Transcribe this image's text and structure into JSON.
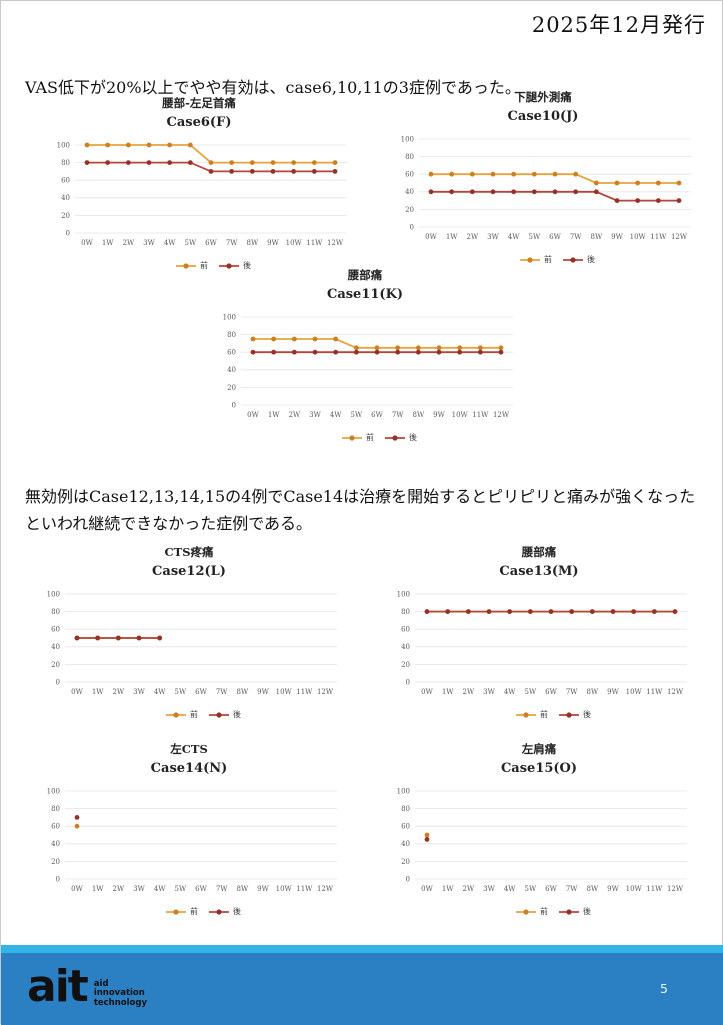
{
  "page": {
    "header_date": "2025年12月発行",
    "paragraph1": "VAS低下が20%以上でやや有効は、case6,10,11の3症例であった。",
    "paragraph2": "無効例はCase12,13,14,15の4例でCase14は治療を開始するとピリピリと痛みが強くなったといわれ継続できなかった症例である。",
    "page_number": "5"
  },
  "footer": {
    "logo_text": "ait",
    "logo_sub": [
      "aid",
      "innovation",
      "technology"
    ],
    "accent_bar_color": "#32B4E6",
    "body_color": "#2A80C2"
  },
  "colors": {
    "before_line": "#E8A23C",
    "before_marker": "#CE7F1E",
    "after_line": "#B5443A",
    "after_marker": "#963129",
    "gridline": "#E4E4E4"
  },
  "chart_data": [
    {
      "type": "line",
      "title": "腰部-左足首痛",
      "subtitle": "Case6(F)",
      "xlabel": "",
      "ylabel": "",
      "ylim": [
        0,
        100
      ],
      "yticks": [
        0,
        20,
        40,
        60,
        80,
        100
      ],
      "grid": true,
      "legend_position": "bottom",
      "categories": [
        "0W",
        "1W",
        "2W",
        "3W",
        "4W",
        "5W",
        "6W",
        "7W",
        "8W",
        "9W",
        "10W",
        "11W",
        "12W"
      ],
      "series": [
        {
          "name": "前",
          "color": "#E8A23C",
          "marker_color": "#CE7F1E",
          "values": [
            100,
            100,
            100,
            100,
            100,
            100,
            80,
            80,
            80,
            80,
            80,
            80,
            80
          ]
        },
        {
          "name": "後",
          "color": "#B5443A",
          "marker_color": "#963129",
          "values": [
            80,
            80,
            80,
            80,
            80,
            80,
            70,
            70,
            70,
            70,
            70,
            70,
            70
          ]
        }
      ]
    },
    {
      "type": "line",
      "title": "下腿外測痛",
      "subtitle": "Case10(J)",
      "xlabel": "",
      "ylabel": "",
      "ylim": [
        0,
        100
      ],
      "yticks": [
        0,
        20,
        40,
        60,
        80,
        100
      ],
      "grid": true,
      "legend_position": "bottom",
      "categories": [
        "0W",
        "1W",
        "2W",
        "3W",
        "4W",
        "5W",
        "6W",
        "7W",
        "8W",
        "9W",
        "10W",
        "11W",
        "12W"
      ],
      "series": [
        {
          "name": "前",
          "color": "#E8A23C",
          "marker_color": "#CE7F1E",
          "values": [
            60,
            60,
            60,
            60,
            60,
            60,
            60,
            60,
            50,
            50,
            50,
            50,
            50
          ]
        },
        {
          "name": "後",
          "color": "#B5443A",
          "marker_color": "#963129",
          "values": [
            40,
            40,
            40,
            40,
            40,
            40,
            40,
            40,
            40,
            30,
            30,
            30,
            30
          ]
        }
      ]
    },
    {
      "type": "line",
      "title": "腰部痛",
      "subtitle": "Case11(K)",
      "xlabel": "",
      "ylabel": "",
      "ylim": [
        0,
        100
      ],
      "yticks": [
        0,
        20,
        40,
        60,
        80,
        100
      ],
      "grid": true,
      "legend_position": "bottom",
      "categories": [
        "0W",
        "1W",
        "2W",
        "3W",
        "4W",
        "5W",
        "6W",
        "7W",
        "8W",
        "9W",
        "10W",
        "11W",
        "12W"
      ],
      "series": [
        {
          "name": "前",
          "color": "#E8A23C",
          "marker_color": "#CE7F1E",
          "values": [
            75,
            75,
            75,
            75,
            75,
            65,
            65,
            65,
            65,
            65,
            65,
            65,
            65
          ]
        },
        {
          "name": "後",
          "color": "#B5443A",
          "marker_color": "#963129",
          "values": [
            60,
            60,
            60,
            60,
            60,
            60,
            60,
            60,
            60,
            60,
            60,
            60,
            60
          ]
        }
      ]
    },
    {
      "type": "line",
      "title": "CTS疼痛",
      "subtitle": "Case12(L)",
      "xlabel": "",
      "ylabel": "",
      "ylim": [
        0,
        100
      ],
      "yticks": [
        0,
        20,
        40,
        60,
        80,
        100
      ],
      "grid": true,
      "legend_position": "bottom",
      "categories": [
        "0W",
        "1W",
        "2W",
        "3W",
        "4W",
        "5W",
        "6W",
        "7W",
        "8W",
        "9W",
        "10W",
        "11W",
        "12W"
      ],
      "series": [
        {
          "name": "前",
          "color": "#E8A23C",
          "marker_color": "#CE7F1E",
          "values": [
            50,
            50,
            50,
            50,
            50,
            null,
            null,
            null,
            null,
            null,
            null,
            null,
            null
          ]
        },
        {
          "name": "後",
          "color": "#B5443A",
          "marker_color": "#963129",
          "values": [
            50,
            50,
            50,
            50,
            50,
            null,
            null,
            null,
            null,
            null,
            null,
            null,
            null
          ]
        }
      ]
    },
    {
      "type": "line",
      "title": "腰部痛",
      "subtitle": "Case13(M)",
      "xlabel": "",
      "ylabel": "",
      "ylim": [
        0,
        100
      ],
      "yticks": [
        0,
        20,
        40,
        60,
        80,
        100
      ],
      "grid": true,
      "legend_position": "bottom",
      "categories": [
        "0W",
        "1W",
        "2W",
        "3W",
        "4W",
        "5W",
        "6W",
        "7W",
        "8W",
        "9W",
        "10W",
        "11W",
        "12W"
      ],
      "series": [
        {
          "name": "前",
          "color": "#E8A23C",
          "marker_color": "#CE7F1E",
          "values": [
            80,
            80,
            80,
            80,
            80,
            80,
            80,
            80,
            80,
            80,
            80,
            80,
            80
          ]
        },
        {
          "name": "後",
          "color": "#B5443A",
          "marker_color": "#963129",
          "values": [
            80,
            80,
            80,
            80,
            80,
            80,
            80,
            80,
            80,
            80,
            80,
            80,
            80
          ]
        }
      ]
    },
    {
      "type": "line",
      "title": "左CTS",
      "subtitle": "Case14(N)",
      "xlabel": "",
      "ylabel": "",
      "ylim": [
        0,
        100
      ],
      "yticks": [
        0,
        20,
        40,
        60,
        80,
        100
      ],
      "grid": true,
      "legend_position": "bottom",
      "categories": [
        "0W",
        "1W",
        "2W",
        "3W",
        "4W",
        "5W",
        "6W",
        "7W",
        "8W",
        "9W",
        "10W",
        "11W",
        "12W"
      ],
      "series": [
        {
          "name": "前",
          "color": "#E8A23C",
          "marker_color": "#CE7F1E",
          "values": [
            60,
            null,
            null,
            null,
            null,
            null,
            null,
            null,
            null,
            null,
            null,
            null,
            null
          ]
        },
        {
          "name": "後",
          "color": "#B5443A",
          "marker_color": "#963129",
          "values": [
            70,
            null,
            null,
            null,
            null,
            null,
            null,
            null,
            null,
            null,
            null,
            null,
            null
          ]
        }
      ]
    },
    {
      "type": "line",
      "title": "左肩痛",
      "subtitle": "Case15(O)",
      "xlabel": "",
      "ylabel": "",
      "ylim": [
        0,
        100
      ],
      "yticks": [
        0,
        20,
        40,
        60,
        80,
        100
      ],
      "grid": true,
      "legend_position": "bottom",
      "categories": [
        "0W",
        "1W",
        "2W",
        "3W",
        "4W",
        "5W",
        "6W",
        "7W",
        "8W",
        "9W",
        "10W",
        "11W",
        "12W"
      ],
      "series": [
        {
          "name": "前",
          "color": "#E8A23C",
          "marker_color": "#CE7F1E",
          "values": [
            50,
            null,
            null,
            null,
            null,
            null,
            null,
            null,
            null,
            null,
            null,
            null,
            null
          ]
        },
        {
          "name": "後",
          "color": "#B5443A",
          "marker_color": "#963129",
          "values": [
            45,
            null,
            null,
            null,
            null,
            null,
            null,
            null,
            null,
            null,
            null,
            null,
            null
          ]
        }
      ]
    }
  ]
}
